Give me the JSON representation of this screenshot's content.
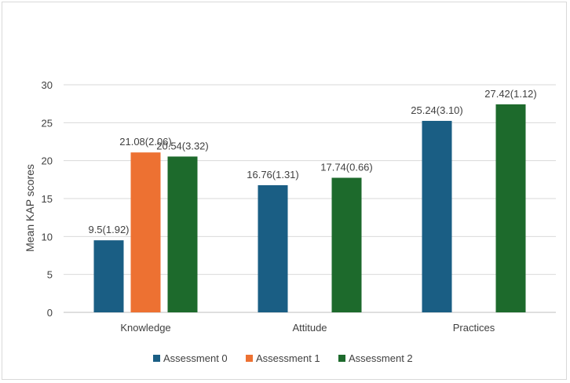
{
  "chart_data": {
    "type": "bar",
    "title": "",
    "xlabel": "",
    "ylabel": "Mean KAP scores",
    "ylim": [
      0,
      30
    ],
    "yticks": [
      0,
      5,
      10,
      15,
      20,
      25,
      30
    ],
    "grid": true,
    "legend_position": "bottom",
    "categories": [
      "Knowledge",
      "Attitude",
      "Practices"
    ],
    "series": [
      {
        "name": "Assessment 0",
        "color": "#1a5e84",
        "values": [
          9.5,
          16.76,
          25.24
        ],
        "labels": [
          "9.5(1.92)",
          "16.76(1.31)",
          "25.24(3.10)"
        ]
      },
      {
        "name": "Assessment 1",
        "color": "#ed7132",
        "values": [
          21.08,
          null,
          null
        ],
        "labels": [
          "21.08(2.06)",
          null,
          null
        ]
      },
      {
        "name": "Assessment 2",
        "color": "#1d6a2c",
        "values": [
          20.54,
          17.74,
          27.42
        ],
        "labels": [
          "20.54(3.32)",
          "17.74(0.66)",
          "27.42(1.12)"
        ]
      }
    ]
  }
}
